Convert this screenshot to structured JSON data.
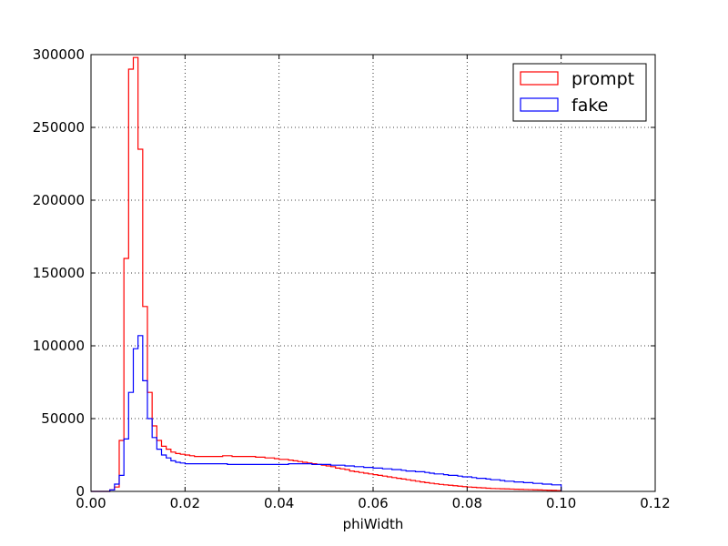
{
  "chart_data": {
    "type": "line",
    "title": "",
    "xlabel": "phiWidth",
    "ylabel": "",
    "xlim": [
      0.0,
      0.12
    ],
    "ylim": [
      0,
      300000
    ],
    "grid": true,
    "legend_position": "top-right",
    "x_ticks": [
      "0.00",
      "0.02",
      "0.04",
      "0.06",
      "0.08",
      "0.10",
      "0.12"
    ],
    "y_ticks": [
      "0",
      "50000",
      "100000",
      "150000",
      "200000",
      "250000",
      "300000"
    ],
    "bin_edges_start": 0.0,
    "bin_width": 0.001,
    "series": [
      {
        "name": "prompt",
        "color": "#ff0000",
        "values": [
          0,
          0,
          0,
          0,
          1000,
          3000,
          35000,
          160000,
          290000,
          298000,
          235000,
          127000,
          68000,
          45000,
          35000,
          31000,
          29000,
          27000,
          26000,
          25500,
          25000,
          24500,
          24000,
          24000,
          24000,
          24000,
          24000,
          24000,
          24500,
          24500,
          24000,
          24000,
          24000,
          24000,
          24000,
          23500,
          23500,
          23000,
          23000,
          22500,
          22000,
          22000,
          21500,
          21000,
          20500,
          20000,
          19500,
          19000,
          18500,
          18000,
          17500,
          17000,
          16000,
          15500,
          15000,
          14000,
          13500,
          13000,
          12500,
          12000,
          11500,
          11000,
          10500,
          10000,
          9500,
          9000,
          8500,
          8000,
          7500,
          7000,
          6500,
          6000,
          5600,
          5200,
          4800,
          4500,
          4200,
          3900,
          3600,
          3300,
          3000,
          2800,
          2600,
          2400,
          2200,
          2000,
          1900,
          1800,
          1700,
          1600,
          1500,
          1400,
          1300,
          1200,
          1100,
          1000,
          900,
          800,
          700,
          600
        ]
      },
      {
        "name": "fake",
        "color": "#0000ff",
        "values": [
          0,
          0,
          0,
          0,
          1000,
          5000,
          11000,
          36000,
          68000,
          98000,
          107000,
          76000,
          50000,
          37000,
          29000,
          25000,
          23000,
          21000,
          20000,
          19500,
          19000,
          19000,
          19000,
          19000,
          19000,
          19000,
          19000,
          19000,
          19000,
          18500,
          18500,
          18500,
          18500,
          18500,
          18500,
          18500,
          18500,
          18500,
          18500,
          18500,
          18500,
          18500,
          19000,
          19000,
          19000,
          19000,
          19000,
          18500,
          18500,
          18500,
          18500,
          18000,
          18000,
          18000,
          17500,
          17500,
          17000,
          17000,
          16500,
          16500,
          16000,
          16000,
          15500,
          15500,
          15000,
          15000,
          14500,
          14000,
          14000,
          13500,
          13500,
          13000,
          12500,
          12000,
          12000,
          11500,
          11000,
          11000,
          10500,
          10000,
          10000,
          9500,
          9000,
          9000,
          8500,
          8000,
          8000,
          7500,
          7000,
          7000,
          6500,
          6500,
          6000,
          6000,
          5500,
          5500,
          5000,
          5000,
          4500,
          4500
        ]
      }
    ]
  }
}
